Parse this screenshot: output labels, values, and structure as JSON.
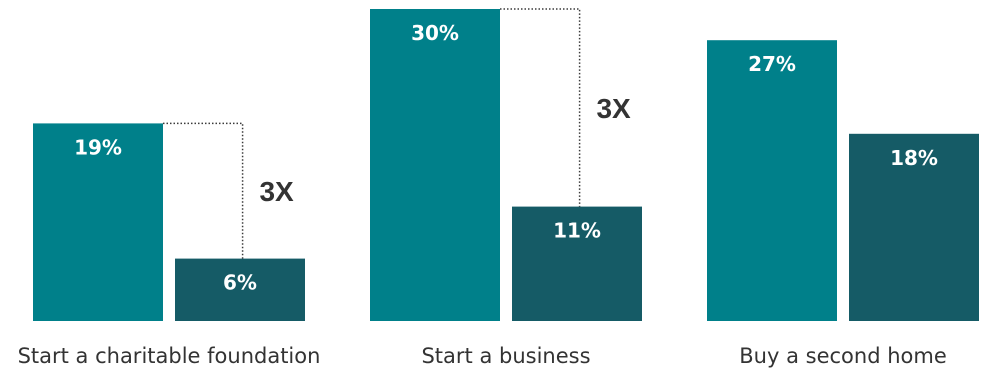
{
  "chart_data": {
    "type": "bar",
    "categories": [
      "Start a charitable foundation",
      "Start a business",
      "Buy a second home"
    ],
    "series": [
      {
        "values": [
          19,
          30,
          27
        ],
        "labels": [
          "19%",
          "30%",
          "27%"
        ],
        "color": "#00808A"
      },
      {
        "values": [
          6,
          11,
          18
        ],
        "labels": [
          "6%",
          "11%",
          "18%"
        ],
        "color": "#155B66"
      }
    ],
    "annotations": [
      {
        "category_index": 0,
        "text": "3X"
      },
      {
        "category_index": 1,
        "text": "3X"
      }
    ],
    "ylim": [
      0,
      30
    ],
    "grid": false,
    "title": "",
    "xlabel": "",
    "ylabel": ""
  }
}
